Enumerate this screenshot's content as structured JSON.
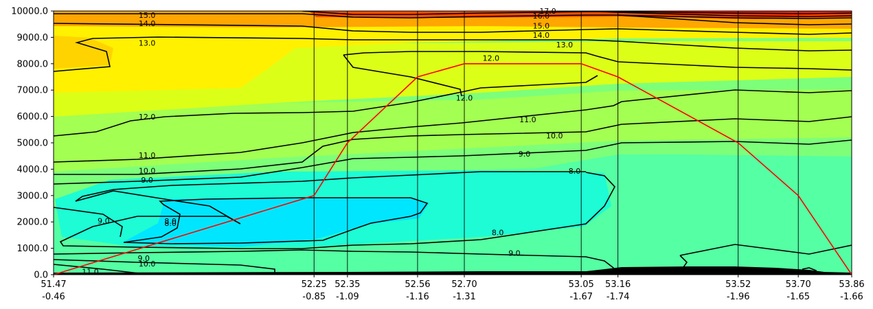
{
  "chart_data": {
    "type": "filled-contour cross-section",
    "xlim": [
      51.47,
      53.86
    ],
    "ylim": [
      0,
      10000
    ],
    "y_ticks": [
      0,
      1000,
      2000,
      3000,
      4000,
      5000,
      6000,
      7000,
      8000,
      9000,
      10000
    ],
    "y_tick_labels": [
      "0.0",
      "1000.0",
      "2000.0",
      "3000.0",
      "4000.0",
      "5000.0",
      "6000.0",
      "7000.0",
      "8000.0",
      "9000.0",
      "10000.0"
    ],
    "stations": [
      {
        "x": 51.47,
        "label1": "51.47",
        "label2": "-0.46",
        "line": false
      },
      {
        "x": 52.25,
        "label1": "52.25",
        "label2": "-0.85",
        "line": true
      },
      {
        "x": 52.35,
        "label1": "52.35",
        "label2": "-1.09",
        "line": true
      },
      {
        "x": 52.56,
        "label1": "52.56",
        "label2": "-1.16",
        "line": true
      },
      {
        "x": 52.7,
        "label1": "52.70",
        "label2": "-1.31",
        "line": true
      },
      {
        "x": 53.05,
        "label1": "53.05",
        "label2": "-1.67",
        "line": true
      },
      {
        "x": 53.16,
        "label1": "53.16",
        "label2": "-1.74",
        "line": true
      },
      {
        "x": 53.52,
        "label1": "53.52",
        "label2": "-1.96",
        "line": true
      },
      {
        "x": 53.7,
        "label1": "53.70",
        "label2": "-1.65",
        "line": true
      },
      {
        "x": 53.86,
        "label1": "53.86",
        "label2": "-1.66",
        "line": false
      }
    ],
    "contour_levels": [
      8,
      9,
      10,
      11,
      12,
      13,
      14,
      15,
      16,
      17
    ],
    "contour_labels": [
      {
        "text": "17.0",
        "x": 52.95,
        "y": 10000
      },
      {
        "text": "16.0",
        "x": 52.93,
        "y": 9820
      },
      {
        "text": "15.0",
        "x": 51.75,
        "y": 9840
      },
      {
        "text": "15.0",
        "x": 52.93,
        "y": 9440
      },
      {
        "text": "14.0",
        "x": 51.75,
        "y": 9530
      },
      {
        "text": "14.0",
        "x": 52.93,
        "y": 9090
      },
      {
        "text": "13.0",
        "x": 51.75,
        "y": 8790
      },
      {
        "text": "13.0",
        "x": 53.0,
        "y": 8720
      },
      {
        "text": "12.0",
        "x": 52.78,
        "y": 8220
      },
      {
        "text": "12.0",
        "x": 52.7,
        "y": 6700
      },
      {
        "text": "12.0",
        "x": 51.75,
        "y": 5990
      },
      {
        "text": "11.0",
        "x": 52.89,
        "y": 5880
      },
      {
        "text": "11.0",
        "x": 51.75,
        "y": 4530
      },
      {
        "text": "10.0",
        "x": 52.97,
        "y": 5270
      },
      {
        "text": "10.0",
        "x": 51.75,
        "y": 3940
      },
      {
        "text": "9.0",
        "x": 52.88,
        "y": 4580
      },
      {
        "text": "9.0",
        "x": 51.75,
        "y": 3590
      },
      {
        "text": "9.0",
        "x": 52.85,
        "y": 820
      },
      {
        "text": "9.0",
        "x": 51.74,
        "y": 620
      },
      {
        "text": "9.0",
        "x": 51.62,
        "y": 2040
      },
      {
        "text": "8.0",
        "x": 53.03,
        "y": 3930
      },
      {
        "text": "8.0",
        "x": 52.8,
        "y": 1600
      },
      {
        "text": "8.0",
        "x": 51.82,
        "y": 2030
      },
      {
        "text": "8.0",
        "x": 51.82,
        "y": 1950
      },
      {
        "text": "10.0",
        "x": 51.75,
        "y": 420
      },
      {
        "text": "11.0",
        "x": 51.58,
        "y": 120
      }
    ],
    "flight_track": [
      {
        "x": 51.47,
        "y": 0
      },
      {
        "x": 52.25,
        "y": 3000
      },
      {
        "x": 52.35,
        "y": 5000
      },
      {
        "x": 52.56,
        "y": 7500
      },
      {
        "x": 52.7,
        "y": 8000
      },
      {
        "x": 53.05,
        "y": 8000
      },
      {
        "x": 53.16,
        "y": 7500
      },
      {
        "x": 53.52,
        "y": 5000
      },
      {
        "x": 53.7,
        "y": 3000
      },
      {
        "x": 53.86,
        "y": 0
      }
    ],
    "colors": {
      "track": "#ff0000",
      "contour_line": "#000000",
      "terrain": "#000000",
      "fill_cold": "#00e6ff",
      "fill_warm": "#ff2000"
    }
  }
}
